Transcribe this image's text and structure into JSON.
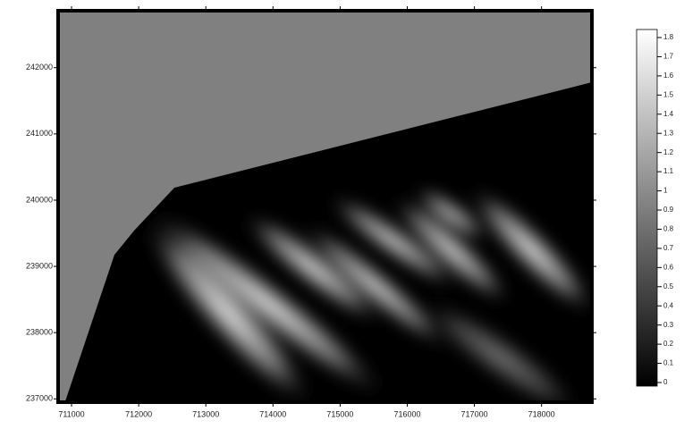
{
  "chart_data": {
    "type": "heatmap",
    "xlim": [
      710800,
      718750
    ],
    "xticks": [
      711000,
      712000,
      713000,
      714000,
      715000,
      716000,
      717000,
      718000
    ],
    "ylim": [
      236950,
      242860
    ],
    "yticks": [
      237000,
      238000,
      239000,
      240000,
      241000,
      242000
    ],
    "colorbar": {
      "lim": [
        0,
        1.85
      ],
      "ticks": [
        0,
        0.1,
        0.2,
        0.3,
        0.4,
        0.5,
        0.6,
        0.7,
        0.8,
        0.9,
        1,
        1.1,
        1.2,
        1.3,
        1.4,
        1.5,
        1.6,
        1.7,
        1.8
      ],
      "colors": [
        "#000000",
        "#ffffff"
      ]
    }
  }
}
